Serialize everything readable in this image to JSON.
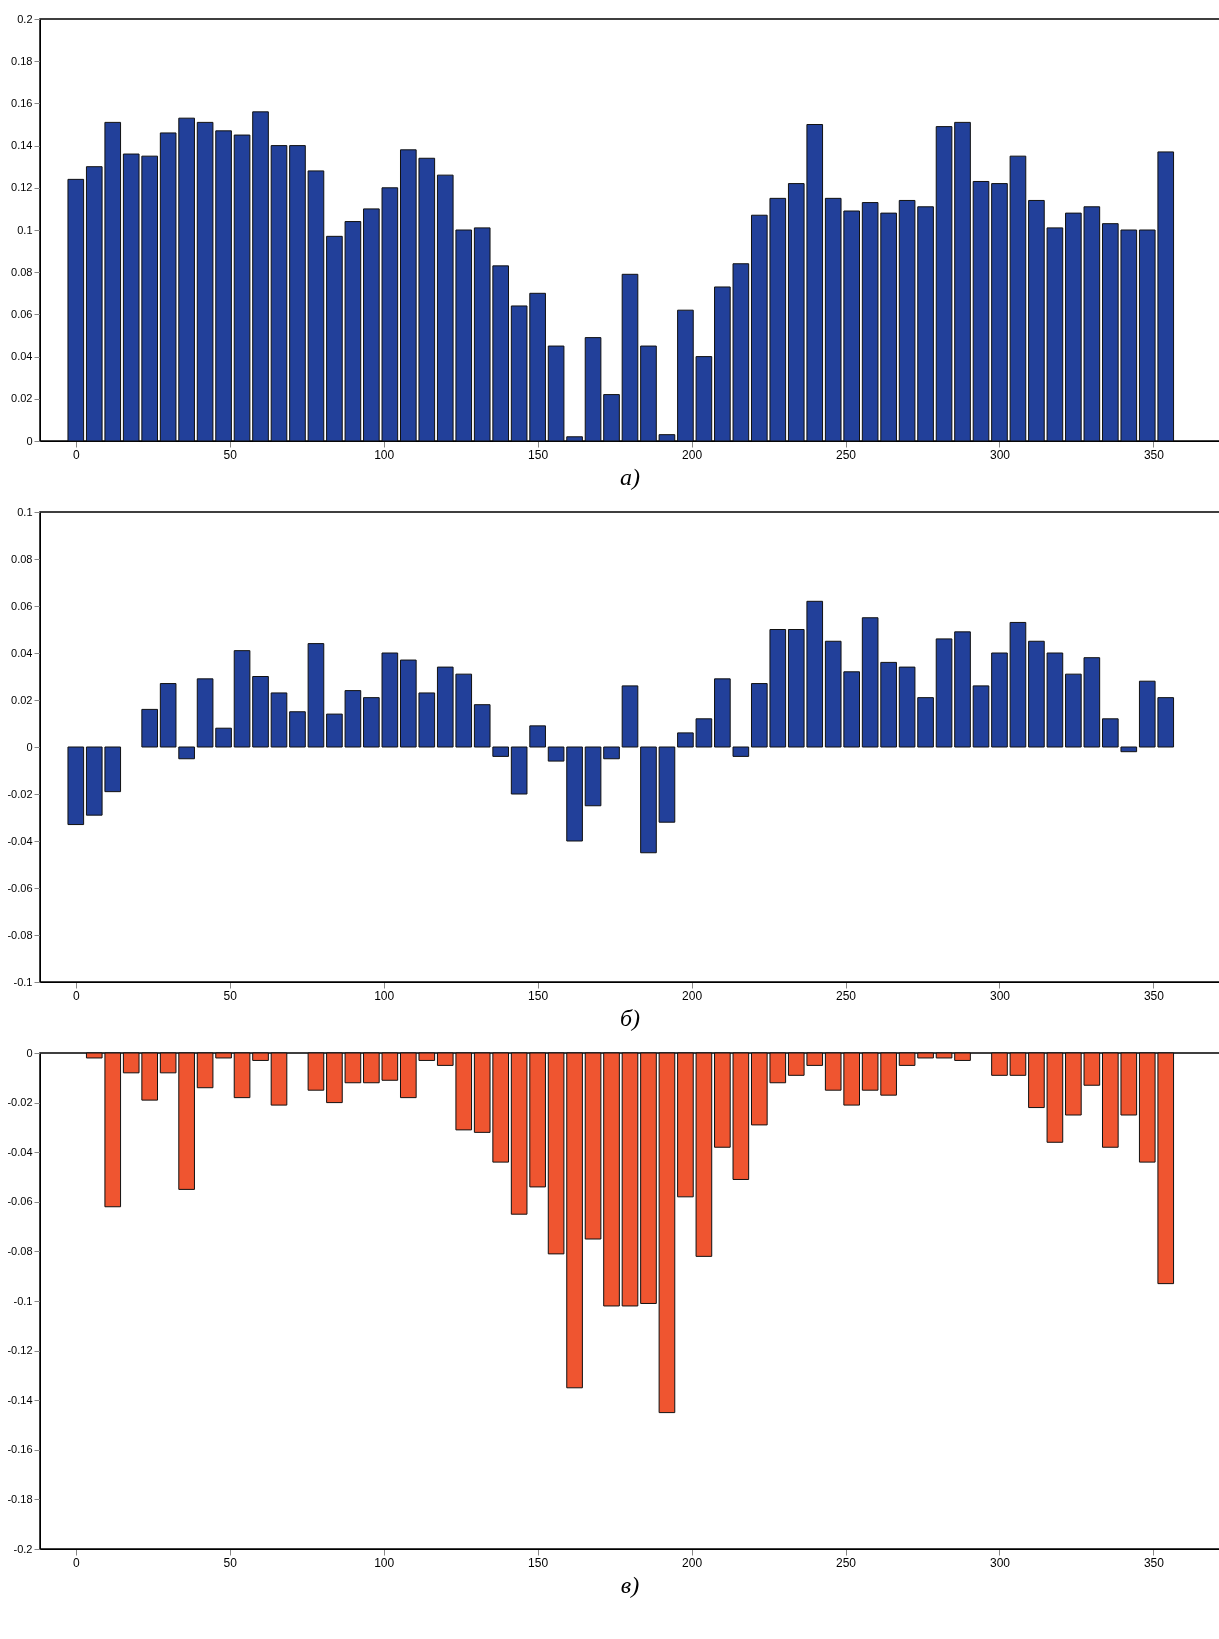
{
  "chart_data": [
    {
      "type": "bar",
      "title": "а)",
      "color": "#22409a",
      "xlim": [
        -10,
        370
      ],
      "xticks": [
        0,
        50,
        100,
        150,
        200,
        250,
        300,
        350
      ],
      "ylim": [
        0,
        0.2
      ],
      "yticks": [
        0,
        0.02,
        0.04,
        0.06,
        0.08,
        0.1,
        0.12,
        0.14,
        0.16,
        0.18,
        0.2
      ],
      "x": [
        0,
        6,
        12,
        18,
        24,
        30,
        36,
        42,
        48,
        54,
        60,
        66,
        72,
        78,
        84,
        90,
        96,
        102,
        108,
        114,
        120,
        126,
        132,
        138,
        144,
        150,
        156,
        162,
        168,
        174,
        180,
        186,
        192,
        198,
        204,
        210,
        216,
        222,
        228,
        234,
        240,
        246,
        252,
        258,
        264,
        270,
        276,
        282,
        288,
        294,
        300,
        306,
        312,
        318,
        324,
        330,
        336,
        342,
        348,
        354
      ],
      "values": [
        0.124,
        0.13,
        0.151,
        0.136,
        0.135,
        0.146,
        0.153,
        0.151,
        0.147,
        0.145,
        0.156,
        0.14,
        0.14,
        0.128,
        0.097,
        0.104,
        0.11,
        0.12,
        0.138,
        0.134,
        0.126,
        0.1,
        0.101,
        0.083,
        0.064,
        0.07,
        0.045,
        0.002,
        0.049,
        0.022,
        0.079,
        0.045,
        0.003,
        0.062,
        0.04,
        0.073,
        0.084,
        0.107,
        0.115,
        0.122,
        0.15,
        0.115,
        0.109,
        0.113,
        0.108,
        0.114,
        0.111,
        0.149,
        0.151,
        0.123,
        0.122,
        0.135,
        0.114,
        0.101,
        0.108,
        0.111,
        0.103,
        0.1,
        0.1,
        0.137
      ]
    },
    {
      "type": "bar",
      "title": "б)",
      "color": "#22409a",
      "xlim": [
        -10,
        370
      ],
      "xticks": [
        0,
        50,
        100,
        150,
        200,
        250,
        300,
        350
      ],
      "ylim": [
        -0.1,
        0.1
      ],
      "yticks": [
        -0.1,
        -0.08,
        -0.06,
        -0.04,
        -0.02,
        0,
        0.02,
        0.04,
        0.06,
        0.08,
        0.1
      ],
      "x": [
        0,
        6,
        12,
        18,
        24,
        30,
        36,
        42,
        48,
        54,
        60,
        66,
        72,
        78,
        84,
        90,
        96,
        102,
        108,
        114,
        120,
        126,
        132,
        138,
        144,
        150,
        156,
        162,
        168,
        174,
        180,
        186,
        192,
        198,
        204,
        210,
        216,
        222,
        228,
        234,
        240,
        246,
        252,
        258,
        264,
        270,
        276,
        282,
        288,
        294,
        300,
        306,
        312,
        318,
        324,
        330,
        336,
        342,
        348,
        354
      ],
      "values": [
        -0.033,
        -0.029,
        -0.019,
        0,
        0.016,
        0.027,
        -0.005,
        0.029,
        0.008,
        0.041,
        0.03,
        0.023,
        0.015,
        0.044,
        0.014,
        0.024,
        0.021,
        0.04,
        0.037,
        0.023,
        0.034,
        0.031,
        0.018,
        -0.004,
        -0.02,
        0.009,
        -0.006,
        -0.04,
        -0.025,
        -0.005,
        0.026,
        -0.045,
        -0.032,
        0.006,
        0.012,
        0.029,
        -0.004,
        0.027,
        0.05,
        0.05,
        0.062,
        0.045,
        0.032,
        0.055,
        0.036,
        0.034,
        0.021,
        0.046,
        0.049,
        0.026,
        0.04,
        0.053,
        0.045,
        0.04,
        0.031,
        0.038,
        0.012,
        -0.002,
        0.028,
        0.021
      ]
    },
    {
      "type": "bar",
      "title": "в)",
      "color": "#ef5530",
      "xlim": [
        -10,
        370
      ],
      "xticks": [
        0,
        50,
        100,
        150,
        200,
        250,
        300,
        350
      ],
      "ylim": [
        -0.2,
        0
      ],
      "yticks": [
        -0.2,
        -0.18,
        -0.16,
        -0.14,
        -0.12,
        -0.1,
        -0.08,
        -0.06,
        -0.04,
        -0.02,
        0
      ],
      "x": [
        0,
        6,
        12,
        18,
        24,
        30,
        36,
        42,
        48,
        54,
        60,
        66,
        72,
        78,
        84,
        90,
        96,
        102,
        108,
        114,
        120,
        126,
        132,
        138,
        144,
        150,
        156,
        162,
        168,
        174,
        180,
        186,
        192,
        198,
        204,
        210,
        216,
        222,
        228,
        234,
        240,
        246,
        252,
        258,
        264,
        270,
        276,
        282,
        288,
        294,
        300,
        306,
        312,
        318,
        324,
        330,
        336,
        342,
        348,
        354
      ],
      "values": [
        0,
        -0.002,
        -0.062,
        -0.008,
        -0.019,
        -0.008,
        -0.055,
        -0.014,
        -0.002,
        -0.018,
        -0.003,
        -0.021,
        0,
        -0.015,
        -0.02,
        -0.012,
        -0.012,
        -0.011,
        -0.018,
        -0.003,
        -0.005,
        -0.031,
        -0.032,
        -0.044,
        -0.065,
        -0.054,
        -0.081,
        -0.135,
        -0.075,
        -0.102,
        -0.102,
        -0.101,
        -0.145,
        -0.058,
        -0.082,
        -0.038,
        -0.051,
        -0.029,
        -0.012,
        -0.009,
        -0.005,
        -0.015,
        -0.021,
        -0.015,
        -0.017,
        -0.005,
        -0.002,
        -0.002,
        -0.003,
        0,
        -0.009,
        -0.009,
        -0.022,
        -0.036,
        -0.025,
        -0.013,
        -0.038,
        -0.025,
        -0.044,
        -0.093
      ]
    }
  ]
}
